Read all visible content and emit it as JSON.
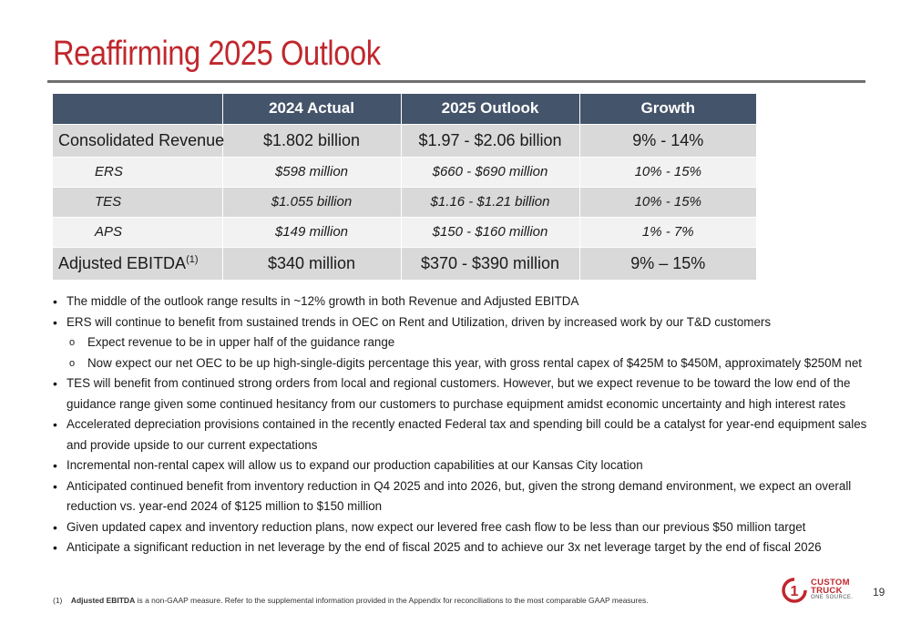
{
  "title": "Reaffirming 2025 Outlook",
  "table": {
    "headers": [
      "",
      "2024 Actual",
      "2025 Outlook",
      "Growth"
    ],
    "rows": [
      {
        "label": "Consolidated Revenue",
        "actual": "$1.802 billion",
        "outlook": "$1.97 - $2.06 billion",
        "growth": "9% - 14%"
      },
      {
        "label": "ERS",
        "actual": "$598 million",
        "outlook": "$660 - $690 million",
        "growth": "10% - 15%"
      },
      {
        "label": "TES",
        "actual": "$1.055 billion",
        "outlook": "$1.16 - $1.21 billion",
        "growth": "10% - 15%"
      },
      {
        "label": "APS",
        "actual": "$149 million",
        "outlook": "$150 - $160 million",
        "growth": "1% - 7%"
      },
      {
        "label": "Adjusted EBITDA",
        "label_sup": "(1)",
        "actual": "$340 million",
        "outlook": "$370 - $390 million",
        "growth": "9% – 15%"
      }
    ]
  },
  "bullets": [
    "The middle of the outlook range results in ~12% growth in both Revenue and Adjusted EBITDA",
    "ERS will continue to benefit from sustained trends in OEC on Rent and Utilization, driven by increased work by our T&D customers",
    "Expect revenue to be in upper half of the guidance range",
    "Now expect our net OEC to be up high-single-digits percentage this year, with gross rental capex of $425M to $450M, approximately $250M net",
    "TES will benefit from continued strong orders from local and regional customers. However, but we expect revenue to be toward the low end of the guidance range given some continued hesitancy from our customers to purchase equipment amidst economic uncertainty and high interest rates",
    "Accelerated depreciation provisions contained in the recently enacted Federal tax and spending bill could be a catalyst for year-end equipment sales and provide upside to our current expectations",
    "Incremental non-rental capex will allow us to expand our production capabilities at our Kansas City location",
    "Anticipated continued benefit from inventory reduction in Q4 2025 and into 2026, but, given the strong demand environment, we expect an overall reduction vs. year-end 2024 of $125 million to $150 million",
    "Given updated capex and inventory reduction plans, now expect our levered free cash flow to be less than our previous $50 million target",
    "Anticipate a significant reduction in net leverage by the end of fiscal 2025 and to achieve our 3x net leverage target by the end of fiscal 2026"
  ],
  "footnote": {
    "marker": "(1)",
    "term": "Adjusted EBITDA",
    "text": " is a non-GAAP measure. Refer to the supplemental information provided in the Appendix for reconciliations to the most comparable GAAP measures."
  },
  "logo": {
    "line1": "CUSTOM",
    "line2": "TRUCK",
    "tagline": "ONE SOURCE.",
    "mark": "1"
  },
  "page_number": "19",
  "colors": {
    "accent": "#c0272d",
    "header_bg": "#44546a",
    "row_shade": "#d9d9d9",
    "row_plain": "#f2f2f2"
  }
}
